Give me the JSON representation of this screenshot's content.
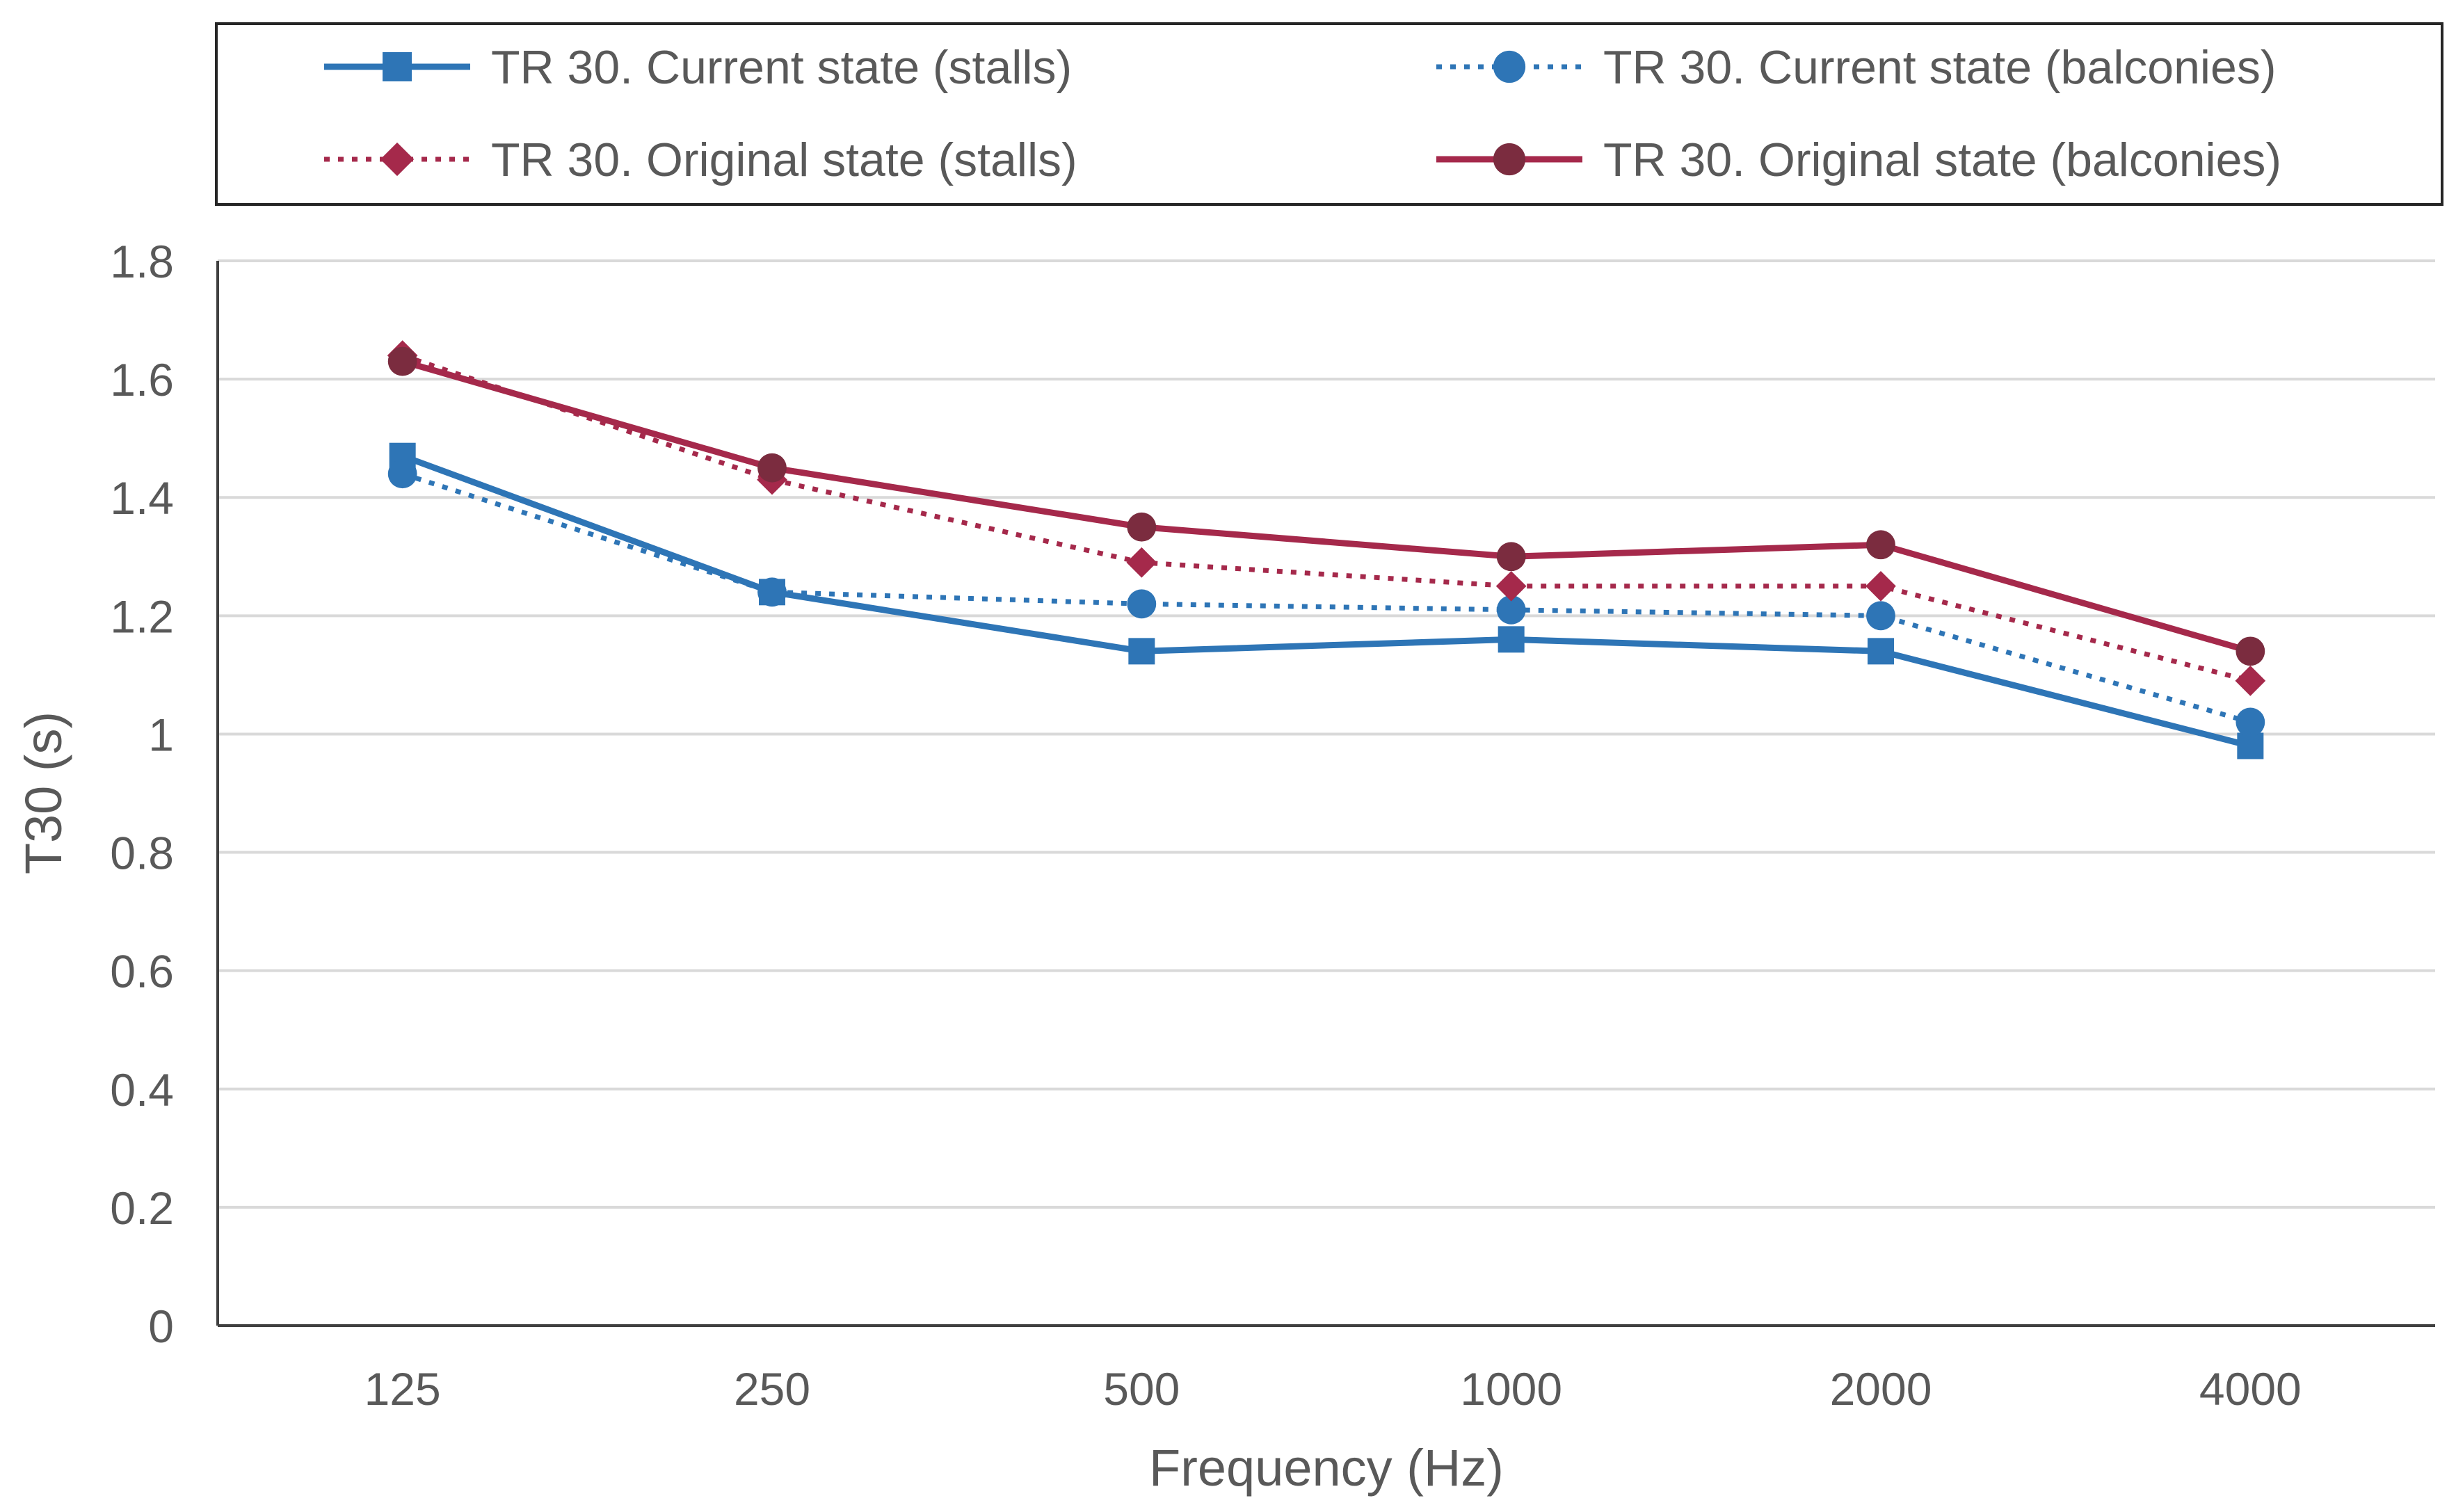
{
  "chart_data": {
    "type": "line",
    "title": "",
    "xlabel": "Frequency (Hz)",
    "ylabel": "T30 (s)",
    "categories": [
      "125",
      "250",
      "500",
      "1000",
      "2000",
      "4000"
    ],
    "ylim": [
      0,
      1.8
    ],
    "yticks": [
      0,
      0.2,
      0.4,
      0.6,
      0.8,
      1,
      1.2,
      1.4,
      1.6,
      1.8
    ],
    "ytick_labels": [
      "0",
      "0.2",
      "0.4",
      "0.6",
      "0.8",
      "1",
      "1.2",
      "1.4",
      "1.6",
      "1.8"
    ],
    "grid": true,
    "legend_position": "top",
    "series": [
      {
        "name": "TR 30. Current state (stalls)",
        "values": [
          1.47,
          1.24,
          1.14,
          1.16,
          1.14,
          0.98
        ],
        "color": "#2E75B6",
        "line_style": "solid",
        "marker": "square"
      },
      {
        "name": "TR 30. Current state (balconies)",
        "values": [
          1.44,
          1.24,
          1.22,
          1.21,
          1.2,
          1.02
        ],
        "color": "#2E75B6",
        "line_style": "dotted",
        "marker": "circle"
      },
      {
        "name": "TR 30. Original state (stalls)",
        "values": [
          1.64,
          1.43,
          1.29,
          1.25,
          1.25,
          1.09
        ],
        "color": "#A5294B",
        "line_style": "dotted",
        "marker": "diamond"
      },
      {
        "name": "TR 30. Original state (balconies)",
        "values": [
          1.63,
          1.45,
          1.35,
          1.3,
          1.32,
          1.14
        ],
        "color": "#A5294B",
        "line_color": "#A5294B",
        "marker_color": "#7B2C3F",
        "line_style": "solid",
        "marker": "circle"
      }
    ]
  }
}
